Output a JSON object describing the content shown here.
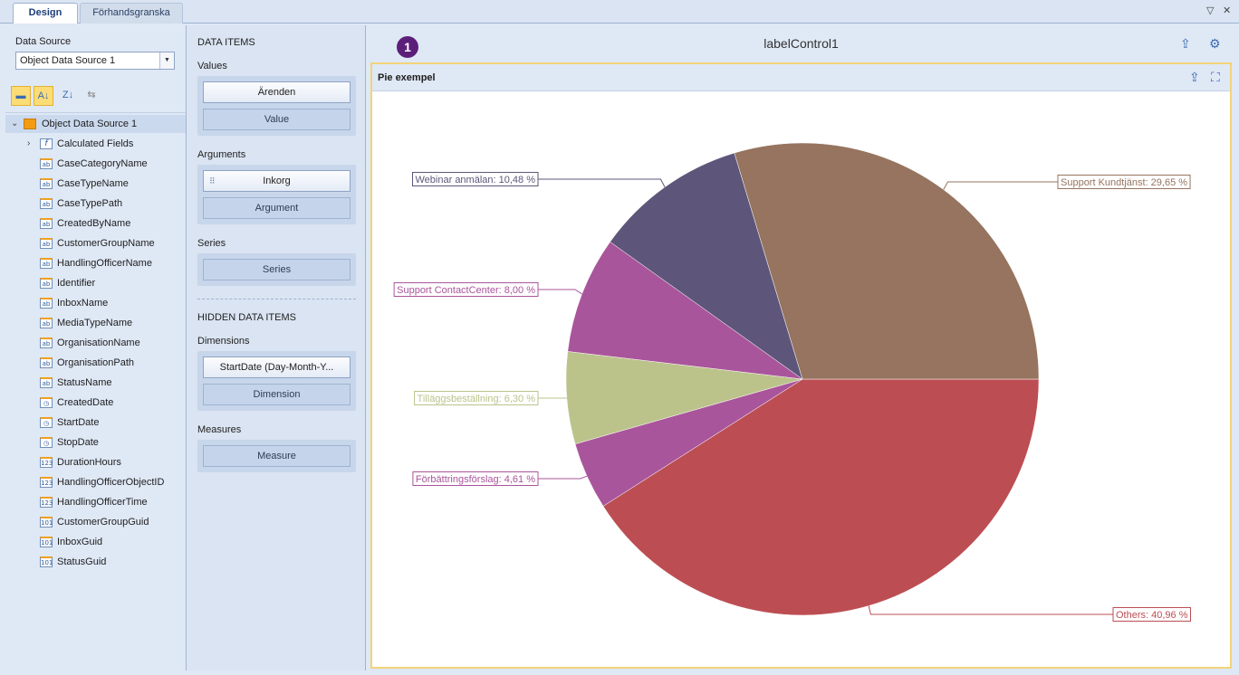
{
  "tabs": {
    "design": "Design",
    "preview": "Förhandsgranska"
  },
  "window_controls": {
    "menu": "▽",
    "close": "✕"
  },
  "data_source": {
    "label": "Data Source",
    "selected": "Object Data Source 1"
  },
  "tree": {
    "root": "Object Data Source 1",
    "fields": [
      {
        "name": "Calculated Fields",
        "icon": "calculated-fields-icon",
        "glyph": "f"
      },
      {
        "name": "CaseCategoryName",
        "icon": "string-field-icon",
        "glyph": "ab"
      },
      {
        "name": "CaseTypeName",
        "icon": "string-field-icon",
        "glyph": "ab"
      },
      {
        "name": "CaseTypePath",
        "icon": "string-field-icon",
        "glyph": "ab"
      },
      {
        "name": "CreatedByName",
        "icon": "string-field-icon",
        "glyph": "ab"
      },
      {
        "name": "CustomerGroupName",
        "icon": "string-field-icon",
        "glyph": "ab"
      },
      {
        "name": "HandlingOfficerName",
        "icon": "string-field-icon",
        "glyph": "ab"
      },
      {
        "name": "Identifier",
        "icon": "string-field-icon",
        "glyph": "ab"
      },
      {
        "name": "InboxName",
        "icon": "string-field-icon",
        "glyph": "ab"
      },
      {
        "name": "MediaTypeName",
        "icon": "string-field-icon",
        "glyph": "ab"
      },
      {
        "name": "OrganisationName",
        "icon": "string-field-icon",
        "glyph": "ab"
      },
      {
        "name": "OrganisationPath",
        "icon": "string-field-icon",
        "glyph": "ab"
      },
      {
        "name": "StatusName",
        "icon": "string-field-icon",
        "glyph": "ab"
      },
      {
        "name": "CreatedDate",
        "icon": "date-field-icon",
        "glyph": "◷"
      },
      {
        "name": "StartDate",
        "icon": "date-field-icon",
        "glyph": "◷"
      },
      {
        "name": "StopDate",
        "icon": "date-field-icon",
        "glyph": "◷"
      },
      {
        "name": "DurationHours",
        "icon": "number-field-icon",
        "glyph": "123"
      },
      {
        "name": "HandlingOfficerObjectID",
        "icon": "number-field-icon",
        "glyph": "123"
      },
      {
        "name": "HandlingOfficerTime",
        "icon": "number-field-icon",
        "glyph": "123"
      },
      {
        "name": "CustomerGroupGuid",
        "icon": "guid-field-icon",
        "glyph": "101"
      },
      {
        "name": "InboxGuid",
        "icon": "guid-field-icon",
        "glyph": "101"
      },
      {
        "name": "StatusGuid",
        "icon": "guid-field-icon",
        "glyph": "101"
      }
    ]
  },
  "data_items": {
    "header": "DATA ITEMS",
    "values_label": "Values",
    "values": [
      "Ärenden",
      "Value"
    ],
    "arguments_label": "Arguments",
    "arguments": [
      "Inkorg",
      "Argument"
    ],
    "series_label": "Series",
    "series": [
      "Series"
    ],
    "hidden_header": "HIDDEN DATA ITEMS",
    "dimensions_label": "Dimensions",
    "dimensions": [
      "StartDate (Day-Month-Y...",
      "Dimension"
    ],
    "measures_label": "Measures",
    "measures": [
      "Measure"
    ]
  },
  "dashboard": {
    "badge": "1",
    "title": "labelControl1"
  },
  "card": {
    "title": "Pie exempel"
  },
  "chart_data": {
    "type": "pie",
    "title": "Pie exempel",
    "slices": [
      {
        "label": "Others: 40,96 %",
        "value": 40.96,
        "color": "#bc4e53"
      },
      {
        "label": "Förbättringsförslag: 4,61 %",
        "value": 4.61,
        "color": "#a9559b"
      },
      {
        "label": "Tilläggsbeställning: 6,30 %",
        "value": 6.3,
        "color": "#bbc38b"
      },
      {
        "label": "Support ContactCenter: 8,00 %",
        "value": 8.0,
        "color": "#a9559b"
      },
      {
        "label": "Webinar anmälan: 10,48 %",
        "value": 10.48,
        "color": "#5e567a"
      },
      {
        "label": "Support Kundtjänst: 29,65 %",
        "value": 29.65,
        "color": "#96745f"
      }
    ]
  }
}
